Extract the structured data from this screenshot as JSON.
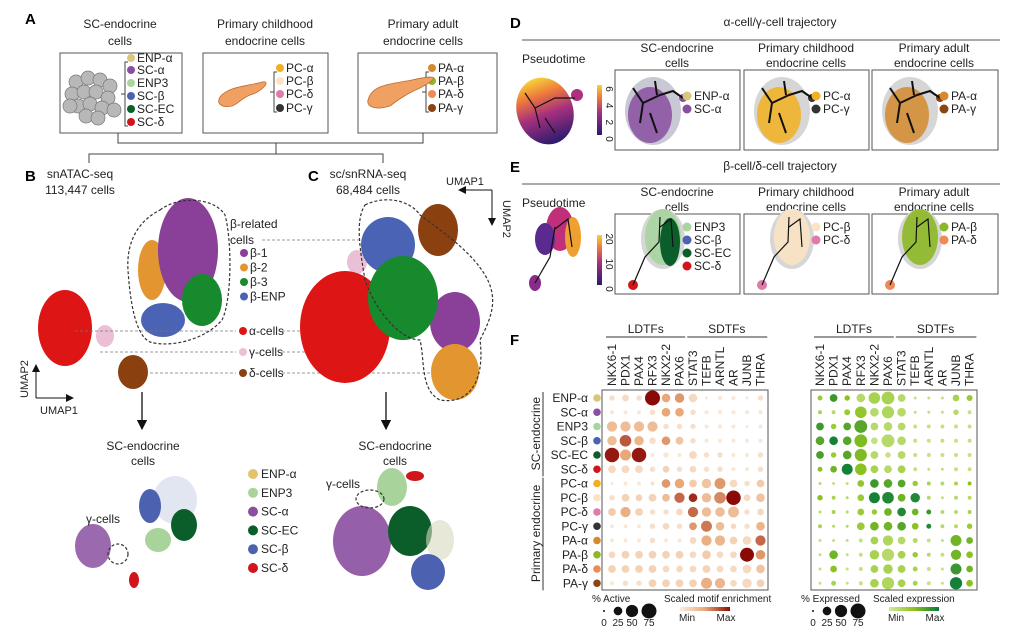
{
  "panel_a": {
    "letter": "A",
    "groups": [
      {
        "title1": "SC-endocrine",
        "title2": "cells",
        "items": [
          {
            "label": "ENP-α",
            "color": "#d8c77a"
          },
          {
            "label": "SC-α",
            "color": "#8a4fa0"
          },
          {
            "label": "ENP3",
            "color": "#a8d4a0"
          },
          {
            "label": "SC-β",
            "color": "#4c62b0"
          },
          {
            "label": "SC-EC",
            "color": "#0b5e2a"
          },
          {
            "label": "SC-δ",
            "color": "#d0161b"
          }
        ]
      },
      {
        "title1": "Primary childhood",
        "title2": "endocrine cells",
        "items": [
          {
            "label": "PC-α",
            "color": "#f2b01e"
          },
          {
            "label": "PC-β",
            "color": "#fbe3c4"
          },
          {
            "label": "PC-δ",
            "color": "#e07aa8"
          },
          {
            "label": "PC-γ",
            "color": "#333333"
          }
        ]
      },
      {
        "title1": "Primary adult",
        "title2": "endocrine cells",
        "items": [
          {
            "label": "PA-α",
            "color": "#d48a2e"
          },
          {
            "label": "PA-β",
            "color": "#8db825"
          },
          {
            "label": "PA-δ",
            "color": "#ee8a55"
          },
          {
            "label": "PA-γ",
            "color": "#8b4513"
          }
        ]
      }
    ]
  },
  "panel_b": {
    "letter": "B",
    "assay": "snATAC-seq",
    "cells": "113,447 cells",
    "umap1": "UMAP1",
    "umap2": "UMAP2"
  },
  "panel_c": {
    "letter": "C",
    "assay": "sc/snRNA-seq",
    "cells": "68,484 cells",
    "umap1": "UMAP1",
    "umap2": "UMAP2"
  },
  "bc_legend": {
    "beta_title1": "β-related",
    "beta_title2": "cells",
    "beta_items": [
      {
        "label": "β-1",
        "color": "#8a3f98"
      },
      {
        "label": "β-2",
        "color": "#e3962f"
      },
      {
        "label": "β-3",
        "color": "#178a2e"
      },
      {
        "label": "β-ENP",
        "color": "#4a63b4"
      }
    ],
    "other_items": [
      {
        "label": "α-cells",
        "color": "#de1515"
      },
      {
        "label": "γ-cells",
        "color": "#ebbfd6"
      },
      {
        "label": "δ-cells",
        "color": "#8b4010"
      }
    ]
  },
  "sc_lower": {
    "title1": "SC-endocrine",
    "title2": "cells",
    "gamma_label": "γ-cells",
    "legend": [
      {
        "label": "ENP-α",
        "color": "#e3c46a"
      },
      {
        "label": "ENP3",
        "color": "#a8d49c"
      },
      {
        "label": "SC-α",
        "color": "#8a4fa0"
      },
      {
        "label": "SC-EC",
        "color": "#0b5e2a"
      },
      {
        "label": "SC-β",
        "color": "#4c62b0"
      },
      {
        "label": "SC-δ",
        "color": "#d0161b"
      }
    ]
  },
  "panel_d": {
    "letter": "D",
    "title": "α-cell/γ-cell trajectory",
    "pseudotime": "Pseudotime",
    "colorbar_ticks": [
      "6",
      "4",
      "2",
      "0"
    ],
    "boxes": [
      {
        "title1": "SC-endocrine",
        "title2": "cells",
        "items": [
          {
            "label": "ENP-α",
            "color": "#d8c77a"
          },
          {
            "label": "SC-α",
            "color": "#8a4fa0"
          }
        ]
      },
      {
        "title1": "Primary childhood",
        "title2": "endocrine cells",
        "items": [
          {
            "label": "PC-α",
            "color": "#f2b01e"
          },
          {
            "label": "PC-γ",
            "color": "#333333"
          }
        ]
      },
      {
        "title1": "Primary adult",
        "title2": "endocrine cells",
        "items": [
          {
            "label": "PA-α",
            "color": "#d48a2e"
          },
          {
            "label": "PA-γ",
            "color": "#8b4513"
          }
        ]
      }
    ]
  },
  "panel_e": {
    "letter": "E",
    "title": "β-cell/δ-cell trajectory",
    "pseudotime": "Pseudotime",
    "colorbar_ticks": [
      "20",
      "10",
      "0"
    ],
    "boxes": [
      {
        "title1": "SC-endocrine",
        "title2": "cells",
        "items": [
          {
            "label": "ENP3",
            "color": "#a8d4a0"
          },
          {
            "label": "SC-β",
            "color": "#4c62b0"
          },
          {
            "label": "SC-EC",
            "color": "#0b5e2a"
          },
          {
            "label": "SC-δ",
            "color": "#d0161b"
          }
        ]
      },
      {
        "title1": "Primary childhood",
        "title2": "endocrine cells",
        "items": [
          {
            "label": "PC-β",
            "color": "#fbe3c4"
          },
          {
            "label": "PC-δ",
            "color": "#e07aa8"
          }
        ]
      },
      {
        "title1": "Primary adult",
        "title2": "endocrine cells",
        "items": [
          {
            "label": "PA-β",
            "color": "#8db825"
          },
          {
            "label": "PA-δ",
            "color": "#ee8a55"
          }
        ]
      }
    ]
  },
  "panel_f": {
    "letter": "F",
    "group_ldtf": "LDTFs",
    "group_sdtf": "SDTFs",
    "row_group_sc": "SC-endocrine",
    "row_group_primary": "Primary endocrine",
    "rows": [
      {
        "label": "ENP-α",
        "color": "#d8c77a"
      },
      {
        "label": "SC-α",
        "color": "#8a4fa0"
      },
      {
        "label": "ENP3",
        "color": "#a8d4a0"
      },
      {
        "label": "SC-β",
        "color": "#4c62b0"
      },
      {
        "label": "SC-EC",
        "color": "#0b5e2a"
      },
      {
        "label": "SC-δ",
        "color": "#d0161b"
      },
      {
        "label": "PC-α",
        "color": "#f2b01e"
      },
      {
        "label": "PC-β",
        "color": "#fbe3c4"
      },
      {
        "label": "PC-δ",
        "color": "#e07aa8"
      },
      {
        "label": "PC-γ",
        "color": "#333333"
      },
      {
        "label": "PA-α",
        "color": "#d48a2e"
      },
      {
        "label": "PA-β",
        "color": "#8db825"
      },
      {
        "label": "PA-δ",
        "color": "#ee8a55"
      },
      {
        "label": "PA-γ",
        "color": "#8b4513"
      }
    ],
    "columns": [
      "NKX6-1",
      "PDX1",
      "PAX4",
      "RFX3",
      "NKX2-2",
      "PAX6",
      "STAT3",
      "TEFB",
      "ARNTL",
      "AR",
      "JUNB",
      "THRA"
    ],
    "atac": {
      "size_legend_title": "% Active",
      "color_legend_title": "Scaled motif enrichment",
      "size_ticks": [
        "0",
        "25",
        "50",
        "75"
      ],
      "color_min": "Min",
      "color_max": "Max",
      "color_low": "#fbeee0",
      "color_high": "#8b0a05",
      "pct_active": [
        [
          10,
          15,
          10,
          75,
          25,
          30,
          25,
          3,
          5,
          5,
          3,
          10
        ],
        [
          5,
          5,
          5,
          10,
          25,
          25,
          10,
          5,
          5,
          5,
          5,
          5
        ],
        [
          35,
          35,
          35,
          35,
          10,
          10,
          10,
          5,
          5,
          5,
          3,
          5
        ],
        [
          30,
          45,
          30,
          15,
          25,
          20,
          10,
          5,
          5,
          5,
          5,
          5
        ],
        [
          70,
          40,
          70,
          5,
          10,
          5,
          20,
          10,
          10,
          5,
          5,
          10
        ],
        [
          20,
          20,
          20,
          10,
          15,
          10,
          15,
          10,
          10,
          5,
          5,
          10
        ],
        [
          3,
          5,
          5,
          5,
          25,
          30,
          20,
          30,
          40,
          20,
          10,
          20
        ],
        [
          10,
          20,
          15,
          20,
          20,
          35,
          25,
          30,
          45,
          70,
          15,
          25
        ],
        [
          20,
          35,
          20,
          10,
          10,
          15,
          35,
          30,
          30,
          40,
          10,
          15
        ],
        [
          5,
          5,
          5,
          10,
          15,
          10,
          20,
          40,
          25,
          10,
          10,
          25
        ],
        [
          5,
          5,
          5,
          10,
          5,
          5,
          15,
          35,
          35,
          20,
          25,
          35
        ],
        [
          15,
          20,
          20,
          20,
          20,
          20,
          15,
          25,
          15,
          15,
          65,
          30
        ],
        [
          20,
          20,
          20,
          20,
          15,
          15,
          15,
          20,
          15,
          15,
          25,
          25
        ],
        [
          5,
          10,
          10,
          20,
          20,
          20,
          20,
          40,
          35,
          15,
          30,
          20
        ]
      ],
      "enrichment": [
        [
          0.1,
          0.15,
          0.1,
          1,
          0.5,
          0.55,
          0.15,
          0.05,
          0.05,
          0.05,
          0.05,
          0.1
        ],
        [
          0.05,
          0.05,
          0.05,
          0.1,
          0.5,
          0.5,
          0.1,
          0.05,
          0.05,
          0.05,
          0.05,
          0.05
        ],
        [
          0.35,
          0.35,
          0.35,
          0.35,
          0.1,
          0.1,
          0.1,
          0.05,
          0.05,
          0.05,
          0.05,
          0.05
        ],
        [
          0.35,
          0.75,
          0.4,
          0.1,
          0.55,
          0.3,
          0.1,
          0.05,
          0.05,
          0.05,
          0.05,
          0.05
        ],
        [
          0.95,
          0.5,
          0.95,
          0.05,
          0.05,
          0.05,
          0.15,
          0.1,
          0.1,
          0.05,
          0.05,
          0.1
        ],
        [
          0.15,
          0.15,
          0.15,
          0.1,
          0.2,
          0.1,
          0.15,
          0.1,
          0.1,
          0.05,
          0.05,
          0.1
        ],
        [
          0.05,
          0.05,
          0.05,
          0.1,
          0.55,
          0.5,
          0.25,
          0.3,
          0.55,
          0.15,
          0.1,
          0.25
        ],
        [
          0.1,
          0.2,
          0.2,
          0.2,
          0.35,
          0.7,
          0.9,
          0.35,
          0.6,
          1,
          0.15,
          0.3
        ],
        [
          0.25,
          0.45,
          0.2,
          0.1,
          0.1,
          0.15,
          0.7,
          0.35,
          0.35,
          0.35,
          0.1,
          0.15
        ],
        [
          0.05,
          0.05,
          0.05,
          0.1,
          0.15,
          0.1,
          0.55,
          0.65,
          0.35,
          0.15,
          0.1,
          0.4
        ],
        [
          0.05,
          0.05,
          0.05,
          0.1,
          0.05,
          0.05,
          0.15,
          0.45,
          0.4,
          0.2,
          0.15,
          0.7
        ],
        [
          0.15,
          0.2,
          0.2,
          0.2,
          0.2,
          0.2,
          0.15,
          0.25,
          0.15,
          0.15,
          1,
          0.55
        ],
        [
          0.2,
          0.2,
          0.2,
          0.2,
          0.15,
          0.15,
          0.15,
          0.2,
          0.15,
          0.15,
          0.15,
          0.3
        ],
        [
          0.05,
          0.1,
          0.1,
          0.2,
          0.2,
          0.2,
          0.2,
          0.45,
          0.4,
          0.15,
          0.15,
          0.2
        ]
      ]
    },
    "rna": {
      "size_legend_title": "% Expressed",
      "color_legend_title": "Scaled expression",
      "size_ticks": [
        "0",
        "25",
        "50",
        "75"
      ],
      "color_min": "Min",
      "color_max": "Max",
      "color_low": "#d4e99a",
      "color_mid": "#8cc21f",
      "color_high": "#077a3c",
      "pct_expressed": [
        [
          8,
          20,
          10,
          25,
          45,
          55,
          20,
          3,
          3,
          3,
          15,
          12
        ],
        [
          5,
          5,
          12,
          45,
          25,
          50,
          25,
          3,
          3,
          3,
          10,
          5
        ],
        [
          20,
          10,
          20,
          55,
          20,
          25,
          20,
          5,
          5,
          5,
          5,
          5
        ],
        [
          25,
          25,
          25,
          55,
          15,
          55,
          25,
          5,
          5,
          5,
          5,
          5
        ],
        [
          20,
          10,
          25,
          50,
          20,
          10,
          20,
          5,
          5,
          5,
          5,
          5
        ],
        [
          8,
          15,
          40,
          45,
          20,
          20,
          20,
          5,
          3,
          3,
          5,
          5
        ],
        [
          3,
          3,
          3,
          15,
          25,
          25,
          20,
          10,
          5,
          5,
          5,
          5
        ],
        [
          10,
          5,
          3,
          15,
          40,
          45,
          20,
          30,
          5,
          3,
          5,
          5
        ],
        [
          3,
          5,
          3,
          15,
          10,
          20,
          25,
          15,
          8,
          5,
          5,
          5
        ],
        [
          5,
          3,
          3,
          20,
          25,
          25,
          25,
          15,
          8,
          5,
          5,
          10
        ],
        [
          3,
          3,
          3,
          5,
          20,
          35,
          20,
          8,
          5,
          3,
          40,
          15
        ],
        [
          3,
          25,
          3,
          5,
          30,
          50,
          20,
          10,
          5,
          5,
          35,
          15
        ],
        [
          3,
          15,
          3,
          5,
          20,
          30,
          20,
          8,
          5,
          3,
          40,
          15
        ],
        [
          3,
          8,
          3,
          5,
          25,
          50,
          20,
          8,
          5,
          3,
          50,
          15
        ]
      ],
      "expression": [
        [
          0.4,
          0.8,
          0.5,
          0.2,
          0.3,
          0.3,
          0.2,
          0.1,
          0.1,
          0.1,
          0.3,
          0.4
        ],
        [
          0.3,
          0.2,
          0.4,
          0.45,
          0.2,
          0.25,
          0.2,
          0.1,
          0.1,
          0.1,
          0.2,
          0.1
        ],
        [
          0.8,
          0.4,
          0.7,
          0.7,
          0.2,
          0.2,
          0.2,
          0.1,
          0.1,
          0.1,
          0.1,
          0.1
        ],
        [
          0.7,
          0.95,
          0.7,
          0.55,
          0.1,
          0.2,
          0.2,
          0.1,
          0.1,
          0.1,
          0.1,
          0.1
        ],
        [
          0.75,
          0.4,
          0.7,
          0.55,
          0.2,
          0.1,
          0.2,
          0.1,
          0.1,
          0.1,
          0.1,
          0.1
        ],
        [
          0.5,
          0.6,
          0.95,
          0.5,
          0.3,
          0.2,
          0.3,
          0.1,
          0.1,
          0.1,
          0.1,
          0.1
        ],
        [
          0.2,
          0.1,
          0.1,
          0.45,
          0.8,
          0.7,
          0.7,
          0.4,
          0.3,
          0.2,
          0.3,
          0.5
        ],
        [
          0.5,
          0.3,
          0.2,
          0.4,
          0.95,
          0.9,
          0.6,
          0.9,
          0.2,
          0.1,
          0.2,
          0.2
        ],
        [
          0.2,
          0.3,
          0.2,
          0.4,
          0.4,
          0.6,
          0.9,
          0.6,
          0.8,
          0.2,
          0.2,
          0.3
        ],
        [
          0.3,
          0.2,
          0.2,
          0.4,
          0.6,
          0.6,
          0.7,
          0.5,
          0.9,
          0.2,
          0.2,
          0.4
        ],
        [
          0.1,
          0.1,
          0.1,
          0.1,
          0.3,
          0.25,
          0.2,
          0.2,
          0.1,
          0.1,
          0.6,
          0.6
        ],
        [
          0.1,
          0.6,
          0.1,
          0.1,
          0.3,
          0.2,
          0.3,
          0.4,
          0.2,
          0.1,
          0.6,
          0.5
        ],
        [
          0.1,
          0.5,
          0.1,
          0.1,
          0.3,
          0.3,
          0.3,
          0.3,
          0.1,
          0.1,
          0.8,
          0.6
        ],
        [
          0.1,
          0.3,
          0.1,
          0.1,
          0.3,
          0.25,
          0.3,
          0.3,
          0.1,
          0.1,
          0.95,
          0.5
        ]
      ]
    }
  }
}
